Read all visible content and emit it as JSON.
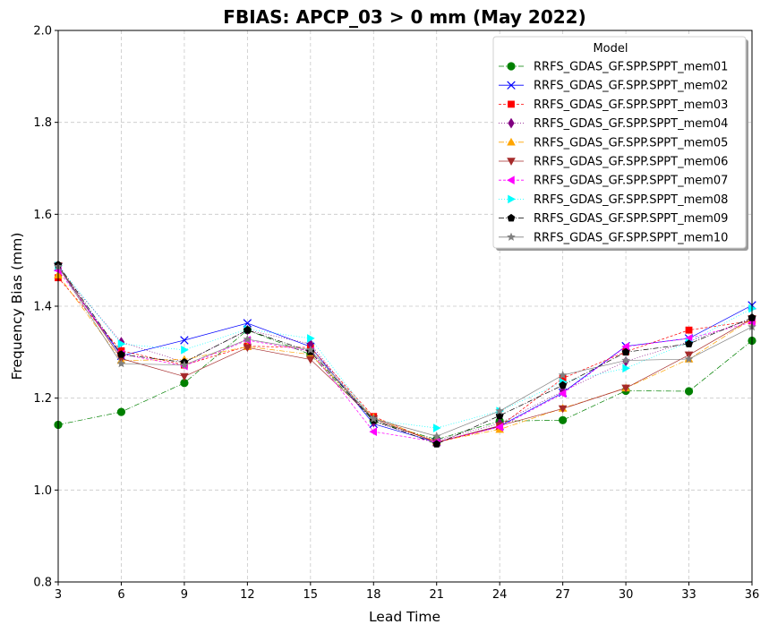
{
  "chart_data": {
    "type": "line",
    "title": "FBIAS: APCP_03 > 0 mm (May 2022)",
    "xlabel": "Lead Time",
    "ylabel": "Frequency Bias (mm)",
    "xlim": [
      3,
      36
    ],
    "ylim": [
      0.8,
      2.0
    ],
    "x": [
      3,
      6,
      9,
      12,
      15,
      18,
      21,
      24,
      27,
      30,
      33,
      36
    ],
    "xticks": [
      "3",
      "6",
      "9",
      "12",
      "15",
      "18",
      "21",
      "24",
      "27",
      "30",
      "33",
      "36"
    ],
    "yticks": [
      "0.8",
      "1.0",
      "1.2",
      "1.4",
      "1.6",
      "1.8",
      "2.0"
    ],
    "grid": true,
    "legend": {
      "title": "Model",
      "placement": "top-right"
    },
    "series": [
      {
        "name": "RRFS_GDAS_GF.SPP.SPPT_mem01",
        "color": "#008000",
        "marker": "circle",
        "dash": "6,2,1,2",
        "values": [
          1.142,
          1.17,
          1.233,
          1.348,
          1.295,
          1.15,
          1.11,
          1.15,
          1.152,
          1.216,
          1.215,
          1.325
        ]
      },
      {
        "name": "RRFS_GDAS_GF.SPP.SPPT_mem02",
        "color": "#0000ff",
        "marker": "x",
        "dash": "",
        "values": [
          1.485,
          1.292,
          1.326,
          1.363,
          1.312,
          1.144,
          1.104,
          1.139,
          1.212,
          1.313,
          1.33,
          1.402
        ]
      },
      {
        "name": "RRFS_GDAS_GF.SPP.SPPT_mem03",
        "color": "#ff0000",
        "marker": "square",
        "dash": "3,2",
        "values": [
          1.462,
          1.303,
          1.272,
          1.313,
          1.31,
          1.16,
          1.103,
          1.138,
          1.243,
          1.301,
          1.348,
          1.368
        ]
      },
      {
        "name": "RRFS_GDAS_GF.SPP.SPPT_mem04",
        "color": "#800080",
        "marker": "diamond",
        "dash": "1,2",
        "values": [
          1.482,
          1.322,
          1.278,
          1.348,
          1.318,
          1.148,
          1.108,
          1.145,
          1.215,
          1.28,
          1.323,
          1.372
        ]
      },
      {
        "name": "RRFS_GDAS_GF.SPP.SPPT_mem05",
        "color": "#ffa500",
        "marker": "triangle-up",
        "dash": "6,2,1,2",
        "values": [
          1.468,
          1.282,
          1.284,
          1.312,
          1.295,
          1.158,
          1.105,
          1.132,
          1.178,
          1.222,
          1.285,
          1.372
        ]
      },
      {
        "name": "RRFS_GDAS_GF.SPP.SPPT_mem06",
        "color": "#a52a2a",
        "marker": "triangle-down",
        "dash": "",
        "values": [
          1.488,
          1.286,
          1.247,
          1.31,
          1.284,
          1.155,
          1.104,
          1.14,
          1.177,
          1.222,
          1.294,
          1.373
        ]
      },
      {
        "name": "RRFS_GDAS_GF.SPP.SPPT_mem07",
        "color": "#ff00ff",
        "marker": "triangle-left",
        "dash": "3,2",
        "values": [
          1.478,
          1.296,
          1.27,
          1.326,
          1.302,
          1.127,
          1.105,
          1.137,
          1.21,
          1.312,
          1.33,
          1.365
        ]
      },
      {
        "name": "RRFS_GDAS_GF.SPP.SPPT_mem08",
        "color": "#00ffff",
        "marker": "triangle-right",
        "dash": "1,2",
        "values": [
          1.488,
          1.318,
          1.305,
          1.35,
          1.33,
          1.152,
          1.135,
          1.172,
          1.235,
          1.265,
          1.322,
          1.395
        ]
      },
      {
        "name": "RRFS_GDAS_GF.SPP.SPPT_mem09",
        "color": "#000000",
        "marker": "pentagon",
        "dash": "6,2,1,2",
        "values": [
          1.49,
          1.295,
          1.278,
          1.348,
          1.301,
          1.152,
          1.1,
          1.162,
          1.228,
          1.3,
          1.318,
          1.375
        ]
      },
      {
        "name": "RRFS_GDAS_GF.SPP.SPPT_mem10",
        "color": "#808080",
        "marker": "star",
        "dash": "",
        "values": [
          1.486,
          1.275,
          1.272,
          1.328,
          1.305,
          1.155,
          1.117,
          1.172,
          1.25,
          1.282,
          1.285,
          1.355
        ]
      }
    ]
  }
}
